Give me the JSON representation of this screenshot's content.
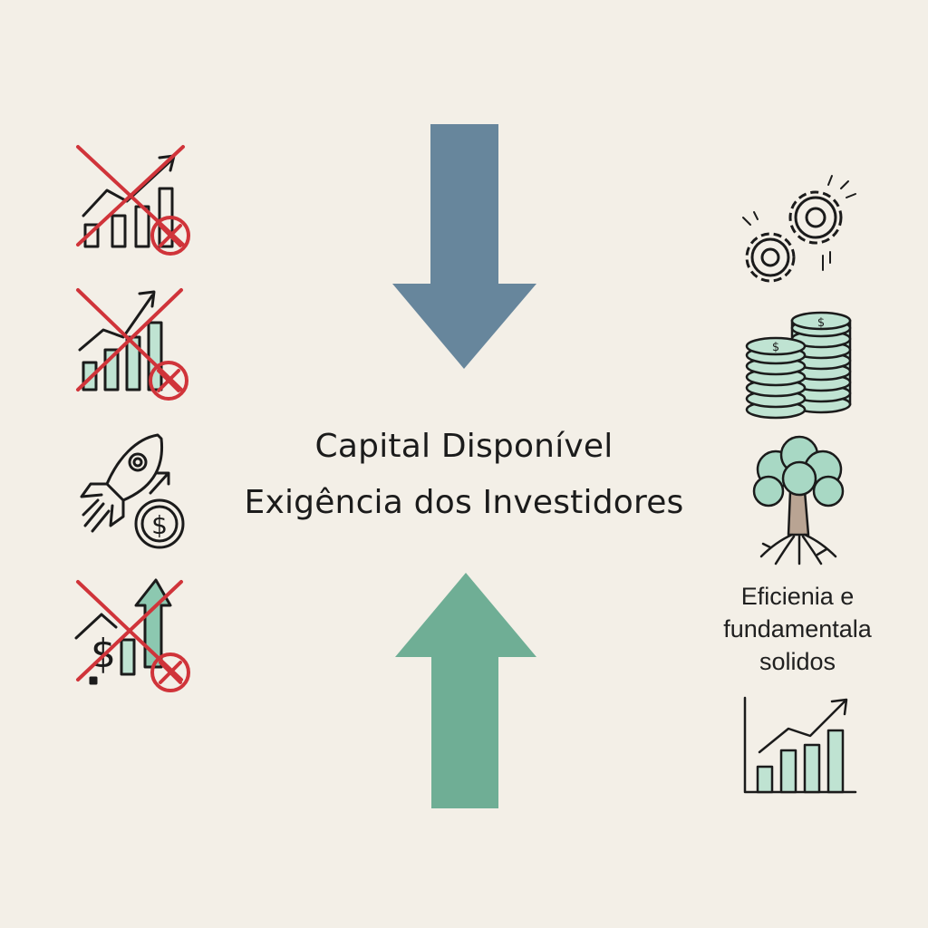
{
  "center": {
    "line1": "Capital Disponível",
    "line2": "Exigência dos Investidores"
  },
  "right_caption": {
    "line1": "Eficienia e",
    "line2": "fundamentala",
    "line3": "solidos"
  },
  "icons": {
    "left": [
      "crossed-out-growth-chart-icon",
      "crossed-out-growth-bars-icon",
      "rocket-with-coin-icon",
      "crossed-out-money-growth-icon"
    ],
    "right": [
      "gears-icon",
      "coin-stacks-icon",
      "tree-with-roots-icon",
      "rising-bar-chart-icon"
    ]
  },
  "colors": {
    "background": "#f3efe7",
    "down_arrow": "#67869c",
    "up_arrow": "#6fae95",
    "cross_red": "#d0343a",
    "mint": "#bfe3d2",
    "ink": "#1b1b1b"
  }
}
